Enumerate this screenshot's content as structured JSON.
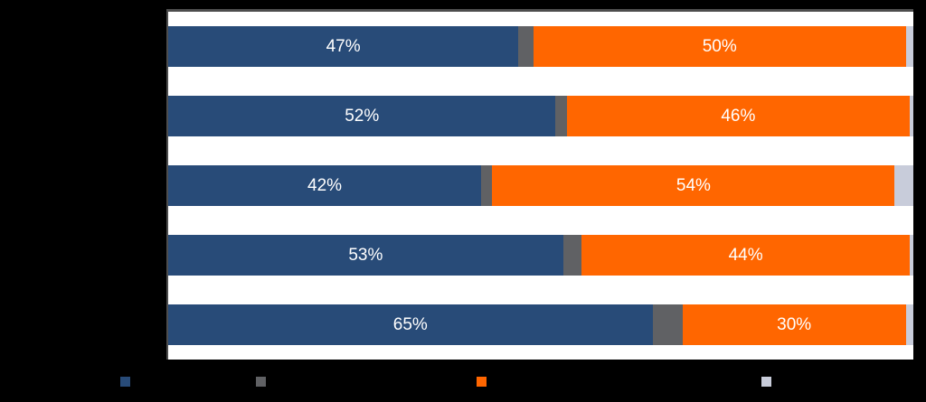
{
  "chart_data": {
    "type": "bar",
    "orientation": "horizontal",
    "stacked": true,
    "stacked_total": 100,
    "xlim": [
      0,
      100
    ],
    "grid": false,
    "legend_position": "bottom",
    "legend_text_visible": false,
    "category_labels_visible": false,
    "categories": [
      "",
      "",
      "",
      "",
      ""
    ],
    "series": [
      {
        "name": "blue-segment",
        "color": "#284B78",
        "values": [
          47,
          52,
          42,
          53,
          65
        ],
        "labels": [
          "47%",
          "52%",
          "42%",
          "53%",
          "65%"
        ]
      },
      {
        "name": "gray-segment",
        "color": "#606164",
        "values": [
          2,
          1.5,
          1.5,
          2.5,
          4
        ],
        "labels": [
          "",
          "",
          "",
          "",
          ""
        ]
      },
      {
        "name": "orange-segment",
        "color": "#FF6600",
        "values": [
          50,
          46,
          54,
          44,
          30
        ],
        "labels": [
          "50%",
          "46%",
          "54%",
          "44%",
          "30%"
        ]
      },
      {
        "name": "lavender-segment",
        "color": "#C8CCDA",
        "values": [
          1,
          0.5,
          2.5,
          0.5,
          1
        ],
        "labels": [
          "",
          "",
          "",
          "",
          ""
        ]
      }
    ]
  },
  "legend": {
    "items": [
      {
        "name": "blue-series",
        "color": "#284B78"
      },
      {
        "name": "gray-series",
        "color": "#606164"
      },
      {
        "name": "orange-series",
        "color": "#FF6600"
      },
      {
        "name": "lavender-series",
        "color": "#C8CCDA"
      }
    ]
  },
  "colors": {
    "plot_background": "#ffffff",
    "page_background": "#000000",
    "plot_border": "#4d4d4d",
    "bar_label_text": "#ffffff"
  }
}
